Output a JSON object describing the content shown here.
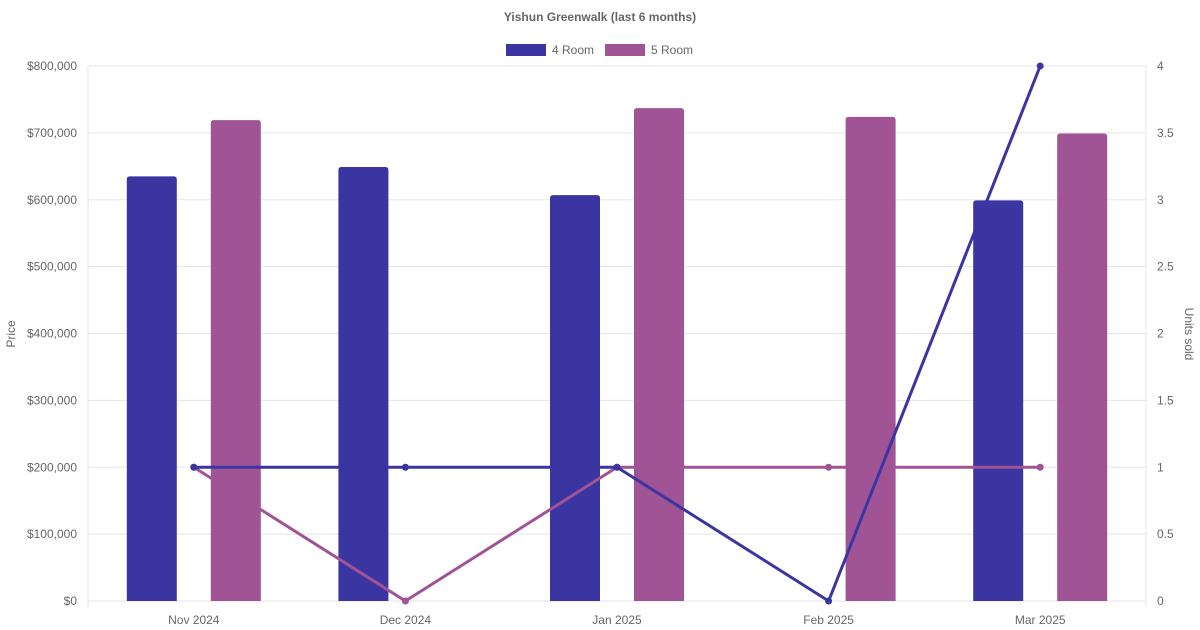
{
  "chart_data": {
    "type": "bar",
    "title": "Yishun Greenwalk (last 6 months)",
    "categories": [
      "Nov 2024",
      "Dec 2024",
      "Jan 2025",
      "Feb 2025",
      "Mar 2025"
    ],
    "legend": {
      "position": "top-center",
      "entries": [
        {
          "label": "4 Room",
          "color": "#3a35a0"
        },
        {
          "label": "5 Room",
          "color": "#a05395"
        }
      ]
    },
    "y_left": {
      "label": "Price",
      "range": [
        0,
        800000
      ],
      "ticks": [
        0,
        100000,
        200000,
        300000,
        400000,
        500000,
        600000,
        700000,
        800000
      ],
      "tick_labels": [
        "$0",
        "$100,000",
        "$200,000",
        "$300,000",
        "$400,000",
        "$500,000",
        "$600,000",
        "$700,000",
        "$800,000"
      ]
    },
    "y_right": {
      "label": "Units sold",
      "range": [
        0,
        4
      ],
      "ticks": [
        0,
        0.5,
        1,
        1.5,
        2,
        2.5,
        3,
        3.5,
        4
      ],
      "tick_labels": [
        "0",
        "0.5",
        "1",
        "1.5",
        "2",
        "2.5",
        "3",
        "3.5",
        "4"
      ]
    },
    "grid": true,
    "bar_series": [
      {
        "name": "4 Room",
        "color": "#3a35a0",
        "axis": "left",
        "values": [
          635000,
          649000,
          607000,
          null,
          599000
        ]
      },
      {
        "name": "5 Room",
        "color": "#a05395",
        "axis": "left",
        "values": [
          719000,
          null,
          737000,
          724000,
          699000
        ]
      }
    ],
    "line_series": [
      {
        "color": "#3a35a0",
        "axis": "right",
        "values": [
          1,
          1,
          1,
          0,
          4
        ]
      },
      {
        "color": "#a05395",
        "axis": "right",
        "values": [
          1,
          0,
          1,
          1,
          1
        ]
      }
    ]
  }
}
